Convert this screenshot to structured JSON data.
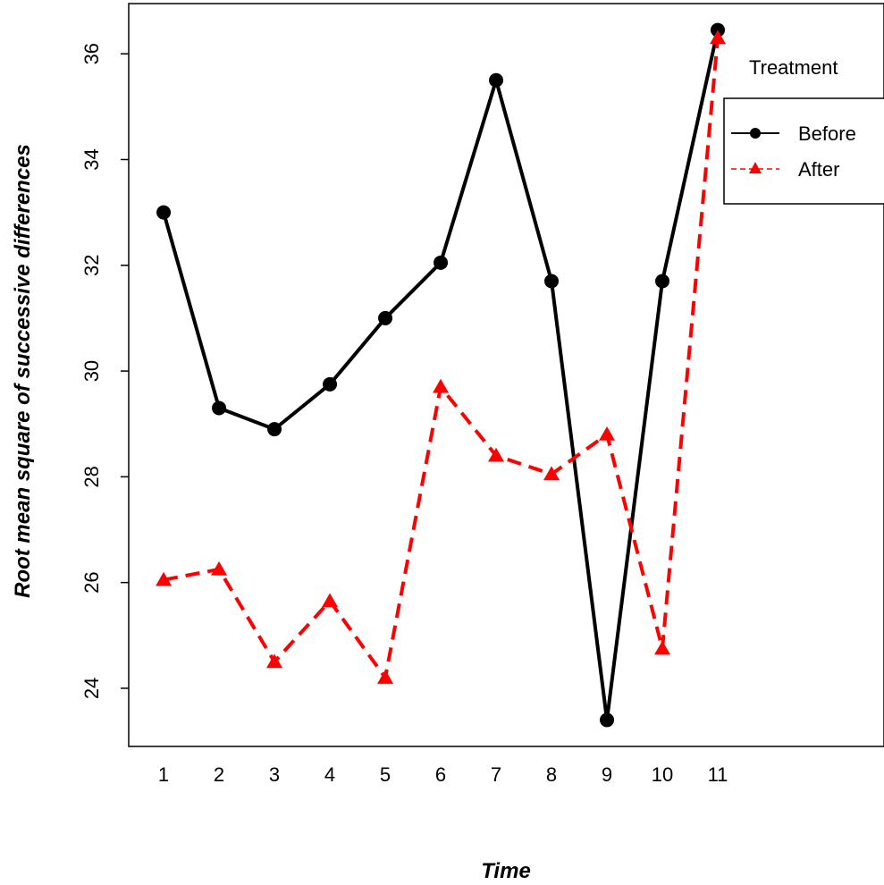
{
  "chart_data": {
    "type": "line",
    "xlabel": "Time",
    "ylabel": "Root mean square of successive differences",
    "x": [
      1,
      2,
      3,
      4,
      5,
      6,
      7,
      8,
      9,
      10,
      11
    ],
    "x_tick_labels": [
      "1",
      "2",
      "3",
      "4",
      "5",
      "6",
      "7",
      "8",
      "9",
      "10",
      "11"
    ],
    "y_ticks": [
      24,
      26,
      28,
      30,
      32,
      34,
      36
    ],
    "y_tick_labels": [
      "24",
      "26",
      "28",
      "30",
      "32",
      "34",
      "36"
    ],
    "xlim": [
      0.37,
      14.0
    ],
    "ylim": [
      22.9,
      36.95
    ],
    "grid": false,
    "legend": {
      "title": "Treatment",
      "placement": "top-right"
    },
    "series": [
      {
        "name": "Before",
        "color": "#000000",
        "line_style": "solid",
        "marker": "circle",
        "values": [
          33.0,
          29.3,
          28.9,
          29.75,
          31.0,
          32.05,
          35.5,
          31.7,
          23.4,
          31.7,
          36.45
        ]
      },
      {
        "name": "After",
        "color": "#ff0000",
        "line_style": "dashed",
        "marker": "triangle",
        "values": [
          26.05,
          26.25,
          24.5,
          25.65,
          24.2,
          29.7,
          28.4,
          28.05,
          28.8,
          24.75,
          36.3
        ]
      }
    ]
  }
}
